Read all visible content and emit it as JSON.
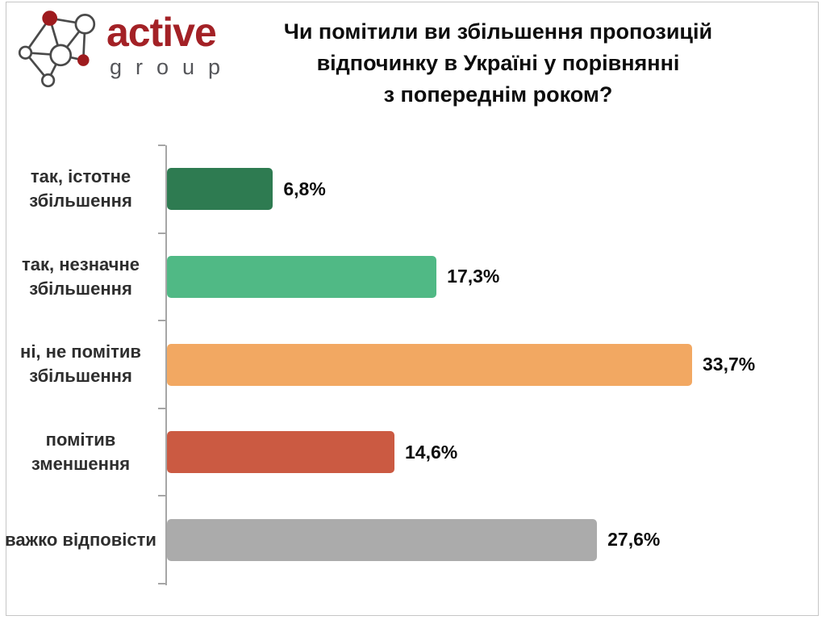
{
  "logo": {
    "brand": "active",
    "sub": "group",
    "brand_color": "#A32126",
    "sub_color": "#55565A",
    "node_red": "#9E1B1E",
    "node_stroke": "#4A4A4A"
  },
  "title": {
    "lines": [
      "Чи помітили ви збільшення пропозицій",
      "відпочинку в Україні у порівнянні",
      "з попереднім роком?"
    ]
  },
  "chart_data": {
    "type": "bar",
    "orientation": "horizontal",
    "title": "Чи помітили ви збільшення пропозицій відпочинку в Україні у порівнянні з попереднім роком?",
    "categories": [
      "так, істотне збільшення",
      "так, незначне збільшення",
      "ні, не помітив збільшення",
      "помітив зменшення",
      "важко відповісти"
    ],
    "category_lines": [
      [
        "так, істотне",
        "збільшення"
      ],
      [
        "так, незначне",
        "збільшення"
      ],
      [
        "ні, не помітив",
        "збільшення"
      ],
      [
        "помітив",
        "зменшення"
      ],
      [
        "важко відповісти"
      ]
    ],
    "values": [
      6.8,
      17.3,
      33.7,
      14.6,
      27.6
    ],
    "value_labels": [
      "6,8%",
      "17,3%",
      "33,7%",
      "14,6%",
      "27,6%"
    ],
    "bar_colors": [
      "#2E7B51",
      "#50B985",
      "#F2A862",
      "#CB5A42",
      "#ABABAB"
    ],
    "xlim": [
      0,
      41
    ],
    "xlabel": "",
    "ylabel": "",
    "grid": false,
    "legend": false,
    "axis_color": "#A6A6A6",
    "value_suffix": "%"
  }
}
